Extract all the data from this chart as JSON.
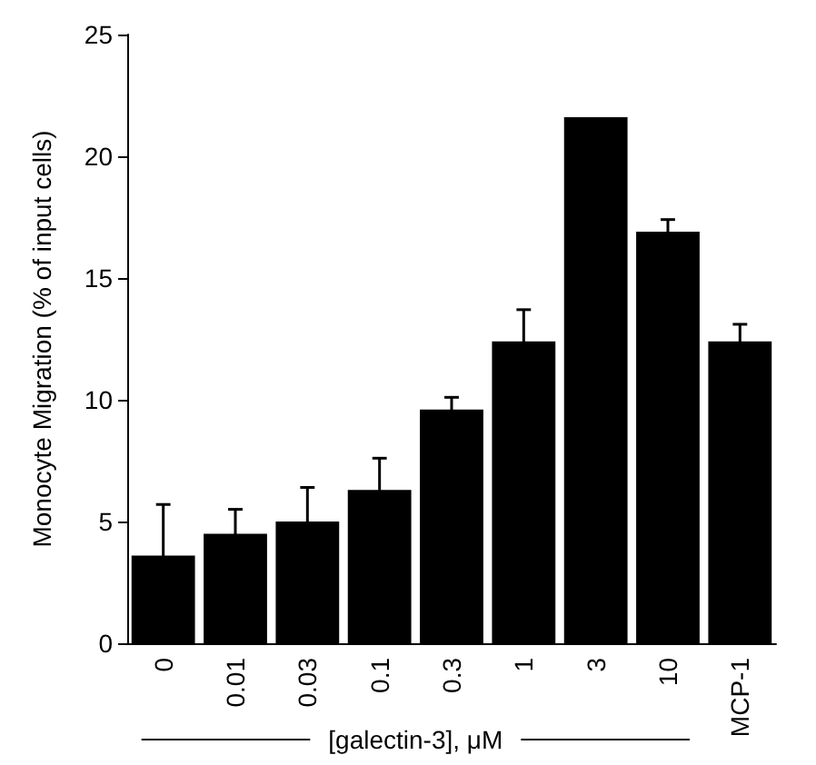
{
  "chart_data": {
    "type": "bar",
    "ylabel": "Monocyte Migration (% of input cells)",
    "xlabel": "[galectin-3], μM",
    "categories": [
      "0",
      "0.01",
      "0.03",
      "0.1",
      "0.3",
      "1",
      "3",
      "10",
      "MCP-1"
    ],
    "values": [
      3.6,
      4.5,
      5.0,
      6.3,
      9.6,
      12.4,
      21.6,
      16.9,
      12.4
    ],
    "errors": [
      2.1,
      1.0,
      1.4,
      1.3,
      0.5,
      1.3,
      null,
      0.5,
      0.7
    ],
    "color": "#000000",
    "ylim": [
      0,
      25
    ],
    "yticks": [
      0,
      5,
      10,
      15,
      20,
      25
    ],
    "grid": false
  }
}
